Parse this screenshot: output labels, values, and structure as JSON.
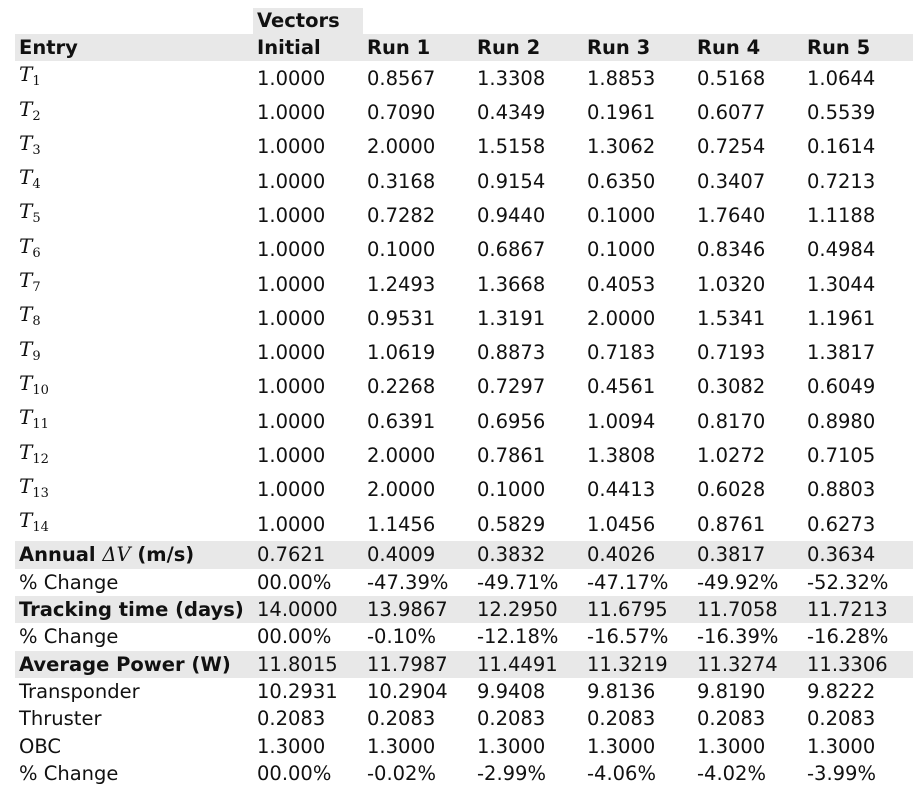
{
  "header": {
    "group_label": "Vectors",
    "entry": "Entry",
    "columns": [
      "Initial",
      "Run 1",
      "Run 2",
      "Run 3",
      "Run 4",
      "Run 5"
    ]
  },
  "entries": [
    {
      "sub": "1",
      "values": [
        "1.0000",
        "0.8567",
        "1.3308",
        "1.8853",
        "0.5168",
        "1.0644"
      ]
    },
    {
      "sub": "2",
      "values": [
        "1.0000",
        "0.7090",
        "0.4349",
        "0.1961",
        "0.6077",
        "0.5539"
      ]
    },
    {
      "sub": "3",
      "values": [
        "1.0000",
        "2.0000",
        "1.5158",
        "1.3062",
        "0.7254",
        "0.1614"
      ]
    },
    {
      "sub": "4",
      "values": [
        "1.0000",
        "0.3168",
        "0.9154",
        "0.6350",
        "0.3407",
        "0.7213"
      ]
    },
    {
      "sub": "5",
      "values": [
        "1.0000",
        "0.7282",
        "0.9440",
        "0.1000",
        "1.7640",
        "1.1188"
      ]
    },
    {
      "sub": "6",
      "values": [
        "1.0000",
        "0.1000",
        "0.6867",
        "0.1000",
        "0.8346",
        "0.4984"
      ]
    },
    {
      "sub": "7",
      "values": [
        "1.0000",
        "1.2493",
        "1.3668",
        "0.4053",
        "1.0320",
        "1.3044"
      ]
    },
    {
      "sub": "8",
      "values": [
        "1.0000",
        "0.9531",
        "1.3191",
        "2.0000",
        "1.5341",
        "1.1961"
      ]
    },
    {
      "sub": "9",
      "values": [
        "1.0000",
        "1.0619",
        "0.8873",
        "0.7183",
        "0.7193",
        "1.3817"
      ]
    },
    {
      "sub": "10",
      "values": [
        "1.0000",
        "0.2268",
        "0.7297",
        "0.4561",
        "0.3082",
        "0.6049"
      ]
    },
    {
      "sub": "11",
      "values": [
        "1.0000",
        "0.6391",
        "0.6956",
        "1.0094",
        "0.8170",
        "0.8980"
      ]
    },
    {
      "sub": "12",
      "values": [
        "1.0000",
        "2.0000",
        "0.7861",
        "1.3808",
        "1.0272",
        "0.7105"
      ]
    },
    {
      "sub": "13",
      "values": [
        "1.0000",
        "2.0000",
        "0.1000",
        "0.4413",
        "0.6028",
        "0.8803"
      ]
    },
    {
      "sub": "14",
      "values": [
        "1.0000",
        "1.1456",
        "0.5829",
        "1.0456",
        "0.8761",
        "0.6273"
      ]
    }
  ],
  "entry_symbol": "T",
  "annual_dv": {
    "label_pre": "Annual ",
    "symbol": "ΔV",
    "label_post": " (m/s)",
    "values": [
      "0.7621",
      "0.4009",
      "0.3832",
      "0.4026",
      "0.3817",
      "0.3634"
    ]
  },
  "rows": [
    {
      "label": "% Change",
      "shaded": false,
      "values": [
        "00.00%",
        "-47.39%",
        "-49.71%",
        "-47.17%",
        "-49.92%",
        "-52.32%"
      ]
    },
    {
      "label": "Tracking time (days)",
      "shaded": true,
      "values": [
        "14.0000",
        "13.9867",
        "12.2950",
        "11.6795",
        "11.7058",
        "11.7213"
      ]
    },
    {
      "label": "% Change",
      "shaded": false,
      "values": [
        "00.00%",
        "-0.10%",
        "-12.18%",
        "-16.57%",
        "-16.39%",
        "-16.28%"
      ]
    },
    {
      "label": "Average Power (W)",
      "shaded": true,
      "values": [
        "11.8015",
        "11.7987",
        "11.4491",
        "11.3219",
        "11.3274",
        "11.3306"
      ]
    },
    {
      "label": "Transponder",
      "shaded": false,
      "values": [
        "10.2931",
        "10.2904",
        "9.9408",
        "9.8136",
        "9.8190",
        "9.8222"
      ]
    },
    {
      "label": "Thruster",
      "shaded": false,
      "values": [
        "0.2083",
        "0.2083",
        "0.2083",
        "0.2083",
        "0.2083",
        "0.2083"
      ]
    },
    {
      "label": "OBC",
      "shaded": false,
      "values": [
        "1.3000",
        "1.3000",
        "1.3000",
        "1.3000",
        "1.3000",
        "1.3000"
      ]
    },
    {
      "label": "% Change",
      "shaded": false,
      "values": [
        "00.00%",
        "-0.02%",
        "-2.99%",
        "-4.06%",
        "-4.02%",
        "-3.99%"
      ]
    }
  ]
}
